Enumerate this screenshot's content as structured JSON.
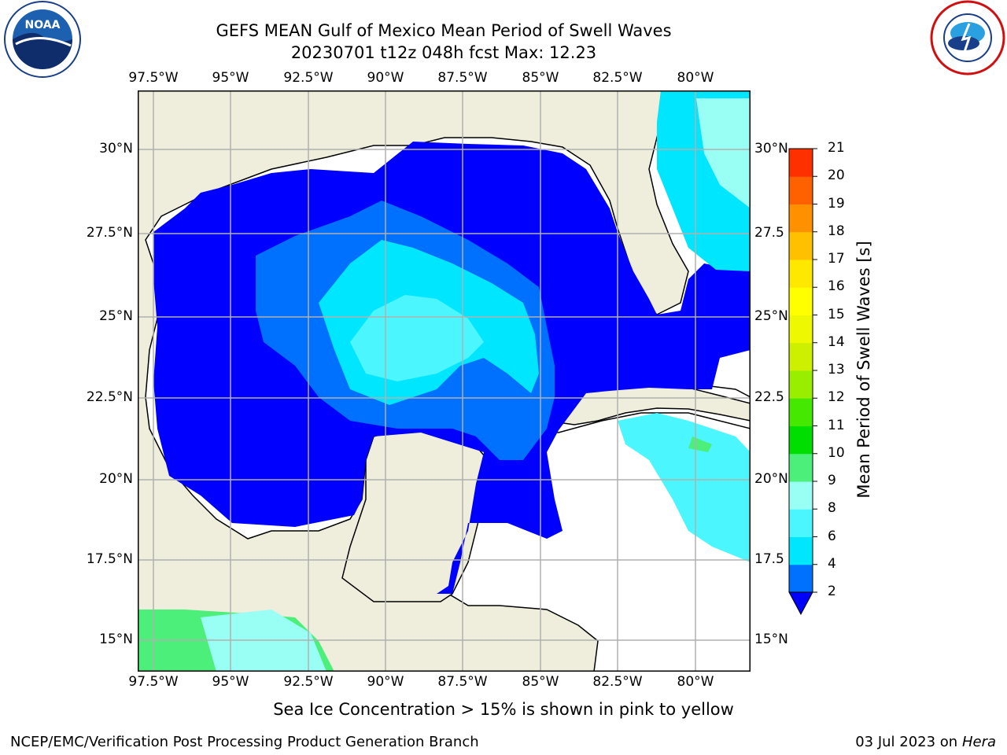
{
  "title_line1": "GEFS MEAN Gulf of Mexico Mean Period of Swell Waves",
  "title_line2": "20230701 t12z 048h fcst   Max: 12.23",
  "lon_labels": [
    "97.5°W",
    "95°W",
    "92.5°W",
    "90°W",
    "87.5°W",
    "85°W",
    "82.5°W",
    "80°W"
  ],
  "lat_labels_left": [
    "30°N",
    "27.5°N",
    "25°N",
    "22.5°N",
    "20°N",
    "17.5°N",
    "15°N"
  ],
  "lat_labels_right": [
    "30°N",
    "27.5",
    "25°N",
    "22.5",
    "20°N",
    "17.5",
    "15°N"
  ],
  "colorbar": {
    "label": "Mean Period of Swell Waves [s]",
    "ticks": [
      "2",
      "4",
      "6",
      "8",
      "9",
      "10",
      "11",
      "12",
      "13",
      "14",
      "15",
      "16",
      "17",
      "18",
      "19",
      "20",
      "21"
    ],
    "colors": [
      "#0070ff",
      "#00e6ff",
      "#4cf6ff",
      "#99fff4",
      "#4cef7a",
      "#00dd00",
      "#44e800",
      "#99ee00",
      "#ccf000",
      "#eef800",
      "#ffff00",
      "#ffe800",
      "#ffc000",
      "#ff9000",
      "#ff6000",
      "#ff3000",
      "#ff0000"
    ],
    "under_color": "#0000ff"
  },
  "note": "Sea Ice Concentration > 15% is shown in pink to yellow",
  "footer_left": "NCEP/EMC/Verification Post Processing Product Generation Branch",
  "footer_date": "03 Jul 2023 on ",
  "footer_host": "Hera",
  "logos": {
    "noaa_text": "NOAA",
    "nws_text": "NATIONAL WEATHER SERVICE"
  },
  "colors": {
    "land": "#efeedd",
    "grid": "#b0b0b0",
    "swell_low": "#0000ff",
    "swell_2_4": "#0070ff",
    "swell_4_6": "#00e6ff",
    "swell_6_8": "#4cf6ff"
  }
}
